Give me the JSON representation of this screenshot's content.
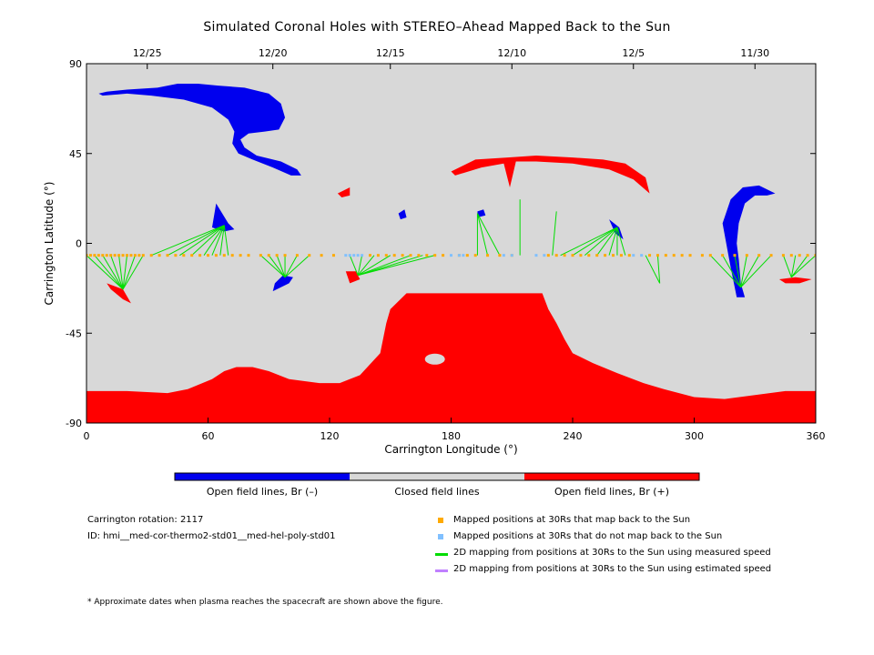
{
  "chart_data": {
    "type": "map",
    "title": "Simulated Coronal Holes with STEREO–Ahead Mapped Back to the Sun",
    "xlabel": "Carrington Longitude (°)",
    "ylabel": "Carrington Latitude (°)",
    "xlim": [
      0,
      360
    ],
    "ylim": [
      -90,
      90
    ],
    "x_ticks": [
      0,
      60,
      120,
      180,
      240,
      300,
      360
    ],
    "y_ticks": [
      90,
      45,
      0,
      -45,
      -90
    ],
    "top_axis_dates": [
      {
        "label": "12/25",
        "lon": 30
      },
      {
        "label": "12/20",
        "lon": 92
      },
      {
        "label": "12/15",
        "lon": 150
      },
      {
        "label": "12/10",
        "lon": 210
      },
      {
        "label": "12/5",
        "lon": 270
      },
      {
        "label": "11/30",
        "lon": 330
      }
    ],
    "regions": [
      {
        "polarity": "negative",
        "name": "north polar hole",
        "poly": [
          [
            6,
            75
          ],
          [
            10,
            76
          ],
          [
            20,
            77
          ],
          [
            35,
            78
          ],
          [
            45,
            80
          ],
          [
            55,
            80
          ],
          [
            65,
            79
          ],
          [
            78,
            78
          ],
          [
            90,
            75
          ],
          [
            96,
            70
          ],
          [
            98,
            63
          ],
          [
            95,
            57
          ],
          [
            88,
            56
          ],
          [
            80,
            55
          ],
          [
            76,
            52
          ],
          [
            78,
            48
          ],
          [
            84,
            44
          ],
          [
            96,
            41
          ],
          [
            104,
            37
          ],
          [
            106,
            34
          ],
          [
            101,
            34
          ],
          [
            92,
            38
          ],
          [
            82,
            42
          ],
          [
            75,
            45
          ],
          [
            72,
            50
          ],
          [
            73,
            56
          ],
          [
            70,
            62
          ],
          [
            62,
            68
          ],
          [
            48,
            72
          ],
          [
            32,
            74
          ],
          [
            20,
            75
          ],
          [
            8,
            74
          ]
        ]
      },
      {
        "polarity": "negative",
        "name": "mid hole 1",
        "poly": [
          [
            64,
            20
          ],
          [
            70,
            10
          ],
          [
            73,
            7
          ],
          [
            68,
            6
          ],
          [
            62,
            8
          ]
        ]
      },
      {
        "polarity": "negative",
        "name": "south hole 1",
        "poly": [
          [
            92,
            -24
          ],
          [
            100,
            -20
          ],
          [
            102,
            -17
          ],
          [
            97,
            -16
          ],
          [
            93,
            -20
          ]
        ]
      },
      {
        "polarity": "negative",
        "name": "east hole",
        "poly": [
          [
            314,
            10
          ],
          [
            318,
            22
          ],
          [
            324,
            28
          ],
          [
            332,
            29
          ],
          [
            340,
            25
          ],
          [
            336,
            24
          ],
          [
            330,
            24
          ],
          [
            325,
            20
          ],
          [
            322,
            10
          ],
          [
            321,
            0
          ],
          [
            322,
            -8
          ],
          [
            323,
            -20
          ],
          [
            325,
            -27
          ],
          [
            321,
            -27
          ],
          [
            318,
            -12
          ]
        ]
      },
      {
        "polarity": "negative",
        "name": "small hole 2",
        "poly": [
          [
            193,
            16
          ],
          [
            196,
            17
          ],
          [
            197,
            14
          ],
          [
            193,
            13
          ]
        ]
      },
      {
        "polarity": "negative",
        "name": "small hole 3",
        "poly": [
          [
            258,
            12
          ],
          [
            263,
            8
          ],
          [
            265,
            2
          ],
          [
            261,
            5
          ]
        ]
      },
      {
        "polarity": "negative",
        "name": "small hole 4",
        "poly": [
          [
            154,
            15
          ],
          [
            157,
            17
          ],
          [
            158,
            13
          ],
          [
            155,
            12
          ]
        ]
      },
      {
        "polarity": "positive",
        "name": "south polar region",
        "poly": [
          [
            0,
            -74
          ],
          [
            20,
            -74
          ],
          [
            40,
            -75
          ],
          [
            50,
            -73
          ],
          [
            62,
            -68
          ],
          [
            68,
            -64
          ],
          [
            74,
            -62
          ],
          [
            82,
            -62
          ],
          [
            90,
            -64
          ],
          [
            100,
            -68
          ],
          [
            115,
            -70
          ],
          [
            125,
            -70
          ],
          [
            135,
            -66
          ],
          [
            145,
            -55
          ],
          [
            148,
            -40
          ],
          [
            150,
            -33
          ],
          [
            158,
            -25
          ],
          [
            170,
            -25
          ],
          [
            182,
            -25
          ],
          [
            195,
            -25
          ],
          [
            210,
            -25
          ],
          [
            225,
            -25
          ],
          [
            228,
            -33
          ],
          [
            232,
            -40
          ],
          [
            236,
            -48
          ],
          [
            240,
            -55
          ],
          [
            250,
            -60
          ],
          [
            262,
            -65
          ],
          [
            275,
            -70
          ],
          [
            285,
            -73
          ],
          [
            300,
            -77
          ],
          [
            315,
            -78
          ],
          [
            330,
            -76
          ],
          [
            345,
            -74
          ],
          [
            360,
            -74
          ],
          [
            360,
            -90
          ],
          [
            0,
            -90
          ]
        ]
      },
      {
        "polarity": "positive",
        "name": "north band",
        "poly": [
          [
            180,
            36
          ],
          [
            192,
            42
          ],
          [
            208,
            43
          ],
          [
            222,
            44
          ],
          [
            240,
            43
          ],
          [
            255,
            42
          ],
          [
            266,
            40
          ],
          [
            276,
            33
          ],
          [
            278,
            25
          ],
          [
            270,
            32
          ],
          [
            258,
            37
          ],
          [
            240,
            40
          ],
          [
            222,
            41
          ],
          [
            212,
            41
          ],
          [
            209,
            28
          ],
          [
            206,
            40
          ],
          [
            195,
            38
          ],
          [
            182,
            34
          ]
        ]
      },
      {
        "polarity": "positive",
        "name": "small pos 1",
        "poly": [
          [
            10,
            -20
          ],
          [
            18,
            -23
          ],
          [
            22,
            -30
          ],
          [
            18,
            -28
          ],
          [
            12,
            -23
          ]
        ]
      },
      {
        "polarity": "positive",
        "name": "small pos 2",
        "poly": [
          [
            128,
            -14
          ],
          [
            133,
            -14
          ],
          [
            135,
            -18
          ],
          [
            130,
            -20
          ]
        ]
      },
      {
        "polarity": "positive",
        "name": "small pos 3",
        "poly": [
          [
            124,
            25
          ],
          [
            130,
            28
          ],
          [
            130,
            24
          ],
          [
            126,
            23
          ]
        ]
      },
      {
        "polarity": "positive",
        "name": "small pos 4",
        "poly": [
          [
            342,
            -18
          ],
          [
            350,
            -17
          ],
          [
            358,
            -18
          ],
          [
            352,
            -20
          ],
          [
            345,
            -20
          ]
        ]
      }
    ],
    "mapping_lines": [
      {
        "from": [
          0,
          -6
        ],
        "to": [
          18,
          -23
        ]
      },
      {
        "from": [
          4,
          -6
        ],
        "to": [
          18,
          -23
        ]
      },
      {
        "from": [
          8,
          -6
        ],
        "to": [
          18,
          -23
        ]
      },
      {
        "from": [
          12,
          -6
        ],
        "to": [
          18,
          -23
        ]
      },
      {
        "from": [
          16,
          -6
        ],
        "to": [
          18,
          -23
        ]
      },
      {
        "from": [
          20,
          -6
        ],
        "to": [
          18,
          -23
        ]
      },
      {
        "from": [
          24,
          -6
        ],
        "to": [
          18,
          -23
        ]
      },
      {
        "from": [
          28,
          -6
        ],
        "to": [
          18,
          -23
        ]
      },
      {
        "from": [
          32,
          -6
        ],
        "to": [
          68,
          9
        ]
      },
      {
        "from": [
          40,
          -6
        ],
        "to": [
          68,
          9
        ]
      },
      {
        "from": [
          46,
          -6
        ],
        "to": [
          68,
          9
        ]
      },
      {
        "from": [
          52,
          -6
        ],
        "to": [
          68,
          9
        ]
      },
      {
        "from": [
          58,
          -6
        ],
        "to": [
          68,
          9
        ]
      },
      {
        "from": [
          62,
          -6
        ],
        "to": [
          68,
          9
        ]
      },
      {
        "from": [
          66,
          -6
        ],
        "to": [
          68,
          9
        ]
      },
      {
        "from": [
          70,
          -6
        ],
        "to": [
          68,
          9
        ]
      },
      {
        "from": [
          86,
          -6
        ],
        "to": [
          98,
          -17
        ]
      },
      {
        "from": [
          90,
          -6
        ],
        "to": [
          98,
          -17
        ]
      },
      {
        "from": [
          94,
          -6
        ],
        "to": [
          98,
          -17
        ]
      },
      {
        "from": [
          98,
          -6
        ],
        "to": [
          98,
          -17
        ]
      },
      {
        "from": [
          104,
          -6
        ],
        "to": [
          98,
          -17
        ]
      },
      {
        "from": [
          110,
          -6
        ],
        "to": [
          98,
          -17
        ]
      },
      {
        "from": [
          130,
          -6
        ],
        "to": [
          134,
          -16
        ]
      },
      {
        "from": [
          136,
          -6
        ],
        "to": [
          134,
          -16
        ]
      },
      {
        "from": [
          142,
          -6
        ],
        "to": [
          134,
          -16
        ]
      },
      {
        "from": [
          150,
          -6
        ],
        "to": [
          134,
          -16
        ]
      },
      {
        "from": [
          160,
          -6
        ],
        "to": [
          134,
          -16
        ]
      },
      {
        "from": [
          166,
          -6
        ],
        "to": [
          134,
          -16
        ]
      },
      {
        "from": [
          172,
          -6
        ],
        "to": [
          134,
          -16
        ]
      },
      {
        "from": [
          193,
          -6
        ],
        "to": [
          193,
          15
        ]
      },
      {
        "from": [
          198,
          -6
        ],
        "to": [
          193,
          15
        ]
      },
      {
        "from": [
          204,
          -6
        ],
        "to": [
          193,
          15
        ]
      },
      {
        "from": [
          214,
          -6
        ],
        "to": [
          214,
          22
        ]
      },
      {
        "from": [
          230,
          -6
        ],
        "to": [
          232,
          16
        ]
      },
      {
        "from": [
          234,
          -6
        ],
        "to": [
          262,
          8
        ]
      },
      {
        "from": [
          240,
          -6
        ],
        "to": [
          262,
          8
        ]
      },
      {
        "from": [
          246,
          -6
        ],
        "to": [
          262,
          8
        ]
      },
      {
        "from": [
          252,
          -6
        ],
        "to": [
          262,
          8
        ]
      },
      {
        "from": [
          258,
          -6
        ],
        "to": [
          262,
          8
        ]
      },
      {
        "from": [
          262,
          -6
        ],
        "to": [
          262,
          8
        ]
      },
      {
        "from": [
          266,
          -6
        ],
        "to": [
          262,
          8
        ]
      },
      {
        "from": [
          276,
          -6
        ],
        "to": [
          283,
          -20
        ]
      },
      {
        "from": [
          282,
          -6
        ],
        "to": [
          283,
          -20
        ]
      },
      {
        "from": [
          308,
          -6
        ],
        "to": [
          323,
          -22
        ]
      },
      {
        "from": [
          314,
          -6
        ],
        "to": [
          323,
          -22
        ]
      },
      {
        "from": [
          320,
          -6
        ],
        "to": [
          323,
          -22
        ]
      },
      {
        "from": [
          326,
          -6
        ],
        "to": [
          323,
          -22
        ]
      },
      {
        "from": [
          332,
          -6
        ],
        "to": [
          323,
          -22
        ]
      },
      {
        "from": [
          338,
          -6
        ],
        "to": [
          323,
          -22
        ]
      },
      {
        "from": [
          344,
          -6
        ],
        "to": [
          348,
          -17
        ]
      },
      {
        "from": [
          350,
          -6
        ],
        "to": [
          348,
          -17
        ]
      },
      {
        "from": [
          356,
          -6
        ],
        "to": [
          348,
          -17
        ]
      },
      {
        "from": [
          360,
          -6
        ],
        "to": [
          348,
          -17
        ]
      }
    ],
    "mapped_points": [
      0,
      2,
      4,
      6,
      8,
      10,
      12,
      14,
      16,
      18,
      20,
      22,
      24,
      26,
      28,
      32,
      36,
      40,
      44,
      48,
      52,
      56,
      60,
      64,
      68,
      72,
      76,
      80,
      86,
      90,
      94,
      98,
      104,
      110,
      116,
      122,
      140,
      144,
      148,
      152,
      156,
      160,
      164,
      168,
      172,
      176,
      184,
      188,
      192,
      198,
      204,
      210,
      228,
      232,
      236,
      240,
      244,
      248,
      252,
      256,
      260,
      264,
      268,
      278,
      282,
      286,
      290,
      294,
      298,
      304,
      308,
      314,
      320,
      326,
      332,
      338,
      344,
      348,
      352,
      356,
      360
    ],
    "unmapped_points": [
      128,
      130,
      132,
      134,
      136,
      180,
      184,
      186,
      206,
      210,
      222,
      226,
      270,
      274
    ],
    "points_lat": -6,
    "colorbar": [
      {
        "label": "Open field lines, Br (–)",
        "color": "#0000ee"
      },
      {
        "label": "Closed field lines",
        "color": "#d8d8d8"
      },
      {
        "label": "Open field lines, Br (+)",
        "color": "#ff0000"
      }
    ],
    "colors": {
      "negative": "#0000ee",
      "positive": "#ff0000",
      "closed": "#d8d8d8",
      "mapped": "#ffaa00",
      "unmapped": "#80c0ff",
      "measured": "#00dd00",
      "estimated": "#c080ff"
    }
  },
  "info": {
    "rotation": "Carrington rotation: 2117",
    "id": "ID: hmi__med-cor-thermo2-std01__med-hel-poly-std01"
  },
  "legend": [
    {
      "label": "Mapped positions at 30Rs that map back to the Sun",
      "kind": "square",
      "color": "#ffaa00"
    },
    {
      "label": "Mapped positions at 30Rs that do not map back to the Sun",
      "kind": "square",
      "color": "#80c0ff"
    },
    {
      "label": "2D mapping from positions at 30Rs to the Sun using measured speed",
      "kind": "line",
      "color": "#00dd00"
    },
    {
      "label": "2D mapping from positions at 30Rs to the Sun using estimated speed",
      "kind": "line",
      "color": "#c080ff"
    }
  ],
  "footnote": "* Approximate dates when plasma reaches the spacecraft are shown above the figure."
}
